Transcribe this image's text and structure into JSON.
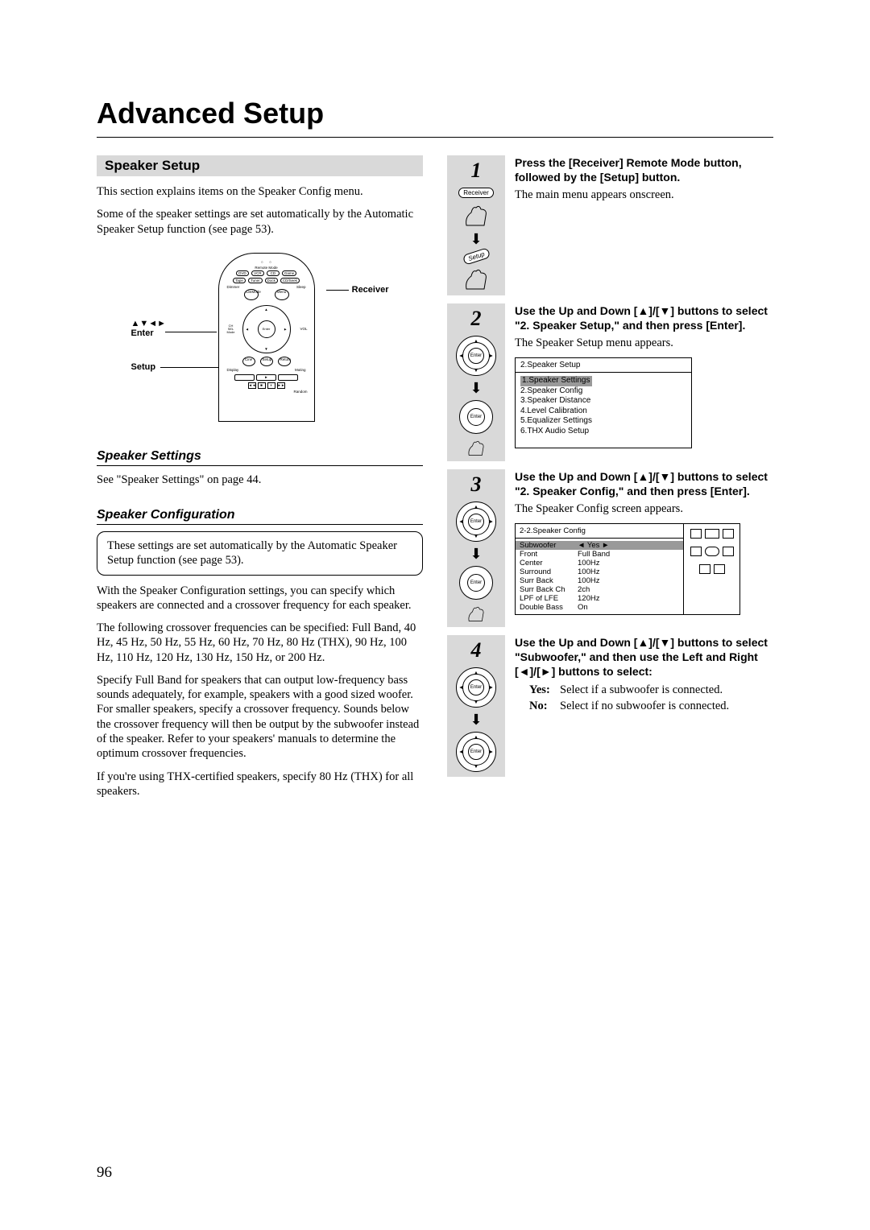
{
  "page": {
    "title": "Advanced Setup",
    "number": "96"
  },
  "speaker_setup": {
    "heading": "Speaker Setup",
    "intro1": "This section explains items on the Speaker Config menu.",
    "intro2": "Some of the speaker settings are set automatically by the Automatic Speaker Setup function (see page 53)."
  },
  "remote_callouts": {
    "receiver": "Receiver",
    "arrows_enter": "▲▼◄►\nEnter",
    "setup": "Setup",
    "inner": {
      "remote_mode": "Remote Mode",
      "top_row": [
        "DVD",
        "VCR",
        "CD",
        "Game"
      ],
      "second_row": [
        "Tape",
        "Tuner",
        "Dock",
        "CD/Seek"
      ],
      "dimmer": "Dimmer",
      "sleep": "Sleep",
      "listmode": "ListMode",
      "menu": "Menu",
      "ch_sel": "CH\nSEL\nMode",
      "vol": "VOL",
      "enter": "Enter",
      "cine": "Cine",
      "setup_btn": "Setup",
      "return_btn": "Return",
      "display": "Display",
      "muting": "Muting",
      "random": "Random"
    }
  },
  "speaker_settings": {
    "heading": "Speaker Settings",
    "body": "See \"Speaker Settings\" on page 44."
  },
  "speaker_config": {
    "heading": "Speaker Configuration",
    "note": "These settings are set automatically by the Automatic Speaker Setup function (see page 53).",
    "p1": "With the Speaker Configuration settings, you can specify which speakers are connected and a crossover frequency for each speaker.",
    "p2": "The following crossover frequencies can be specified: Full Band, 40 Hz, 45 Hz, 50 Hz, 55 Hz, 60 Hz, 70 Hz, 80 Hz (THX), 90 Hz, 100 Hz, 110 Hz, 120 Hz, 130 Hz, 150 Hz, or 200 Hz.",
    "p3": "Specify Full Band for speakers that can output low-frequency bass sounds adequately, for example, speakers with a good sized woofer. For smaller speakers, specify a crossover frequency. Sounds below the crossover frequency will then be output by the subwoofer instead of the speaker. Refer to your speakers' manuals to determine the optimum crossover frequencies.",
    "p4": "If you're using THX-certified speakers, specify 80 Hz (THX) for all speakers."
  },
  "steps": {
    "s1": {
      "num": "1",
      "instr": "Press the [Receiver] Remote Mode button, followed by the [Setup] button.",
      "body": "The main menu appears onscreen.",
      "icons": {
        "oval": "Receiver",
        "setup_label": "Setup"
      }
    },
    "s2": {
      "num": "2",
      "instr": "Use the Up and Down [▲]/[▼] buttons to select \"2. Speaker Setup,\" and then press [Enter].",
      "body": "The Speaker Setup menu appears.",
      "enter_label": "Enter",
      "menu": {
        "title": "2.Speaker Setup",
        "items": [
          "1.Speaker Settings",
          "2.Speaker Config",
          "3.Speaker Distance",
          "4.Level Calibration",
          "5.Equalizer Settings",
          "6.THX Audio Setup"
        ],
        "highlight_index": 0
      }
    },
    "s3": {
      "num": "3",
      "instr": "Use the Up and Down [▲]/[▼] buttons to select \"2. Speaker Config,\" and then press [Enter].",
      "body": "The Speaker Config screen appears.",
      "enter_label": "Enter",
      "config": {
        "title": "2-2.Speaker Config",
        "rows": [
          {
            "label": "Subwoofer",
            "value": "◄    Yes    ►",
            "hl": true
          },
          {
            "label": "Front",
            "value": "Full Band"
          },
          {
            "label": "Center",
            "value": "100Hz"
          },
          {
            "label": "Surround",
            "value": "100Hz"
          },
          {
            "label": "Surr Back",
            "value": "100Hz"
          },
          {
            "label": "Surr Back Ch",
            "value": "2ch"
          },
          {
            "label": "LPF of LFE",
            "value": "120Hz"
          },
          {
            "label": "Double Bass",
            "value": "On"
          }
        ]
      }
    },
    "s4": {
      "num": "4",
      "instr": "Use the Up and Down [▲]/[▼] buttons to select \"Subwoofer,\" and then use the Left and Right [◄]/[►] buttons to select:",
      "enter_label": "Enter",
      "yes_label": "Yes:",
      "yes_text": "Select if a subwoofer is connected.",
      "no_label": "No:",
      "no_text": "Select if no subwoofer is connected."
    }
  },
  "colors": {
    "gray_bg": "#d9d9d9",
    "menu_hl": "#999999",
    "text": "#000000",
    "page_bg": "#ffffff"
  }
}
